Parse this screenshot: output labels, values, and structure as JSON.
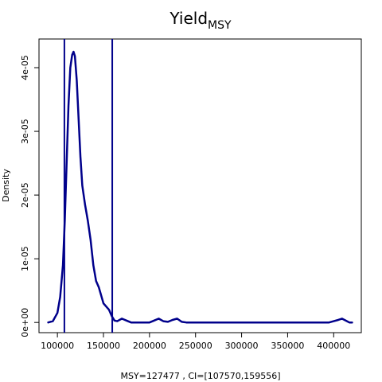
{
  "chart_data": {
    "type": "line",
    "title": {
      "main": "Yield",
      "subscript": "MSY"
    },
    "xlabel": "MSY=127477 , CI=[107570,159556]",
    "ylabel": "Density",
    "xlim": [
      80000,
      430000
    ],
    "ylim": [
      -1.6e-06,
      4.45e-05
    ],
    "x_ticks": [
      100000,
      150000,
      200000,
      250000,
      300000,
      350000,
      400000
    ],
    "x_tick_labels": [
      "100000",
      "150000",
      "200000",
      "250000",
      "300000",
      "350000",
      "400000"
    ],
    "y_ticks": [
      0,
      1e-05,
      2e-05,
      3e-05,
      4e-05
    ],
    "y_tick_labels": [
      "0e+00",
      "1e-05",
      "2e-05",
      "3e-05",
      "4e-05"
    ],
    "grid": false,
    "series": [
      {
        "color": "#00008B",
        "points": [
          [
            90000,
            0
          ],
          [
            95000,
            2e-07
          ],
          [
            100000,
            1.5e-06
          ],
          [
            103000,
            4e-06
          ],
          [
            106000,
            9e-06
          ],
          [
            108000,
            1.6e-05
          ],
          [
            110000,
            2.5e-05
          ],
          [
            112000,
            3.4e-05
          ],
          [
            114000,
            4e-05
          ],
          [
            116000,
            4.2e-05
          ],
          [
            117500,
            4.25e-05
          ],
          [
            119000,
            4.18e-05
          ],
          [
            121000,
            3.8e-05
          ],
          [
            123000,
            3.2e-05
          ],
          [
            125000,
            2.6e-05
          ],
          [
            127000,
            2.15e-05
          ],
          [
            130000,
            1.85e-05
          ],
          [
            133000,
            1.6e-05
          ],
          [
            136000,
            1.3e-05
          ],
          [
            139000,
            9e-06
          ],
          [
            142000,
            6.5e-06
          ],
          [
            145000,
            5.5e-06
          ],
          [
            148000,
            4e-06
          ],
          [
            150000,
            3e-06
          ],
          [
            153000,
            2.5e-06
          ],
          [
            156000,
            2e-06
          ],
          [
            159000,
            1e-06
          ],
          [
            162000,
            3e-07
          ],
          [
            165000,
            2e-07
          ],
          [
            170000,
            6e-07
          ],
          [
            175000,
            3e-07
          ],
          [
            180000,
            0
          ],
          [
            190000,
            0
          ],
          [
            200000,
            0
          ],
          [
            205000,
            3e-07
          ],
          [
            210000,
            6e-07
          ],
          [
            215000,
            2e-07
          ],
          [
            220000,
            1e-07
          ],
          [
            225000,
            4e-07
          ],
          [
            230000,
            6e-07
          ],
          [
            235000,
            1e-07
          ],
          [
            240000,
            0
          ],
          [
            260000,
            0
          ],
          [
            300000,
            0
          ],
          [
            350000,
            0
          ],
          [
            395000,
            0
          ],
          [
            400000,
            2e-07
          ],
          [
            405000,
            4e-07
          ],
          [
            409000,
            6e-07
          ],
          [
            413000,
            3e-07
          ],
          [
            417000,
            0
          ],
          [
            420000,
            0
          ]
        ]
      }
    ],
    "vlines": [
      {
        "x": 107570,
        "color": "#00008B"
      },
      {
        "x": 159556,
        "color": "#00008B"
      }
    ]
  }
}
